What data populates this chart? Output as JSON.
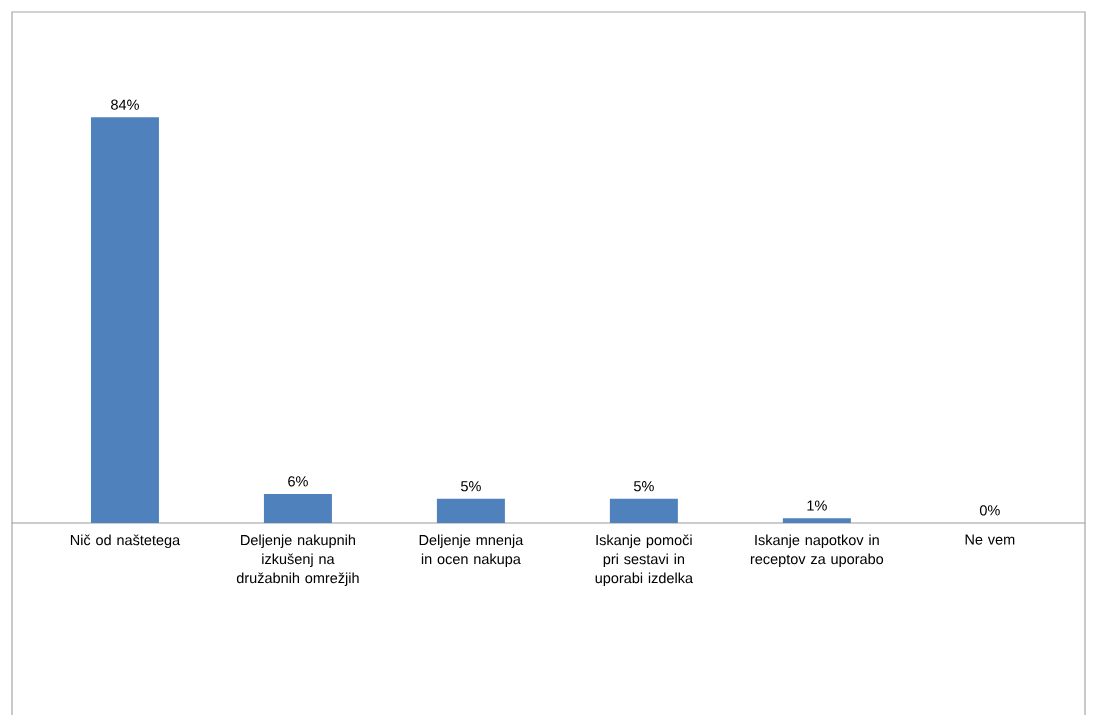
{
  "chart_data": {
    "type": "bar",
    "categories": [
      "Nič od naštetega",
      "Deljenje nakupnih izkušenj na družabnih omrežjih",
      "Deljenje mnenja in ocen nakupa",
      "Iskanje pomoči pri sestavi in uporabi izdelka",
      "Iskanje napotkov in receptov za uporabo",
      "Ne vem"
    ],
    "values": [
      84,
      6,
      5,
      5,
      1,
      0
    ],
    "value_labels": [
      "84%",
      "6%",
      "5%",
      "5%",
      "1%",
      "0%"
    ],
    "color": "#4f81bd"
  }
}
